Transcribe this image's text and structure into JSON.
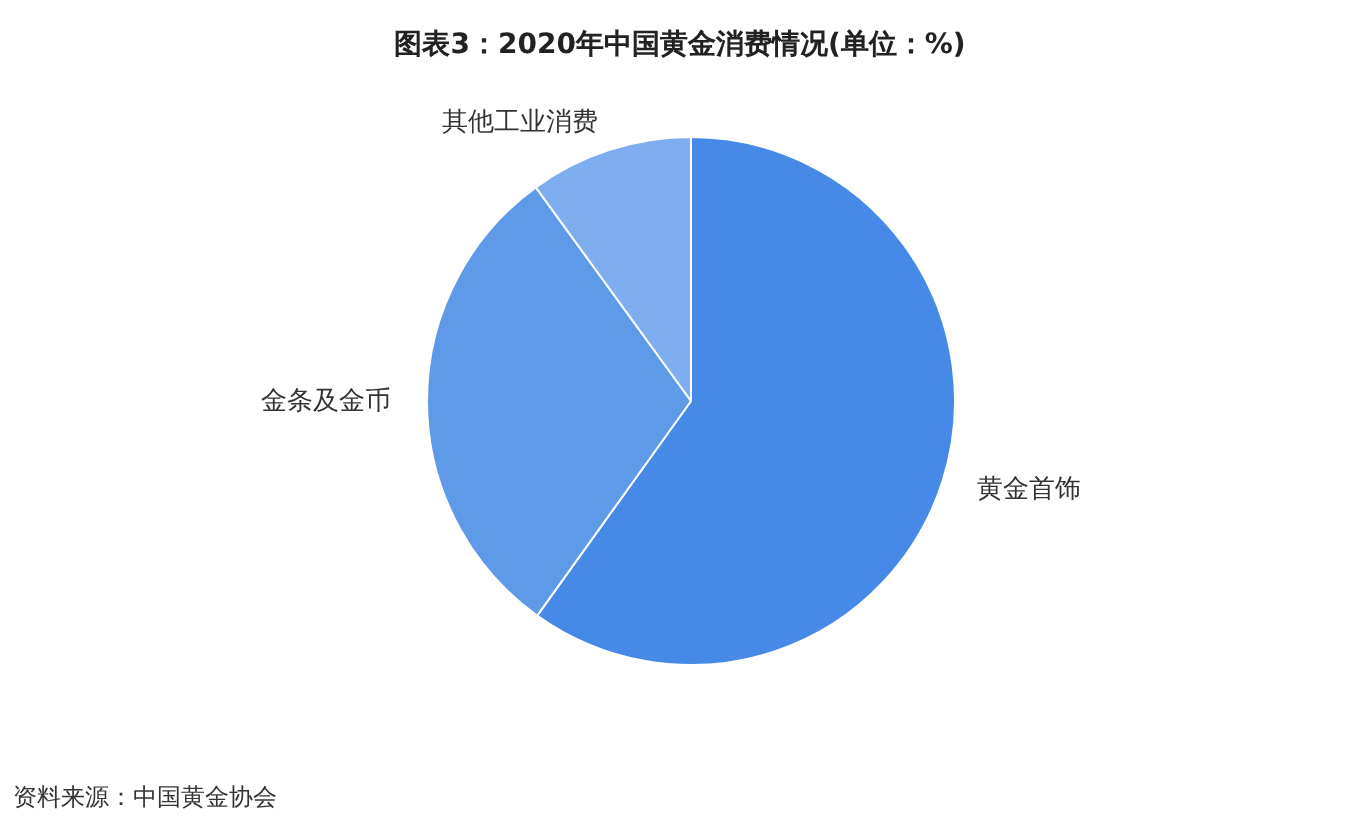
{
  "chart_data": {
    "type": "pie",
    "title": "图表3：2020年中国黄金消费情况(单位：%)",
    "categories": [
      "黄金首饰",
      "金条及金币",
      "其他工业消费"
    ],
    "values": [
      59.9,
      30.1,
      10.0
    ],
    "colors": [
      "#4689e6",
      "#5f9ae9",
      "#7eaef0"
    ],
    "annotations": [
      "资料来源：中国黄金协会"
    ]
  }
}
